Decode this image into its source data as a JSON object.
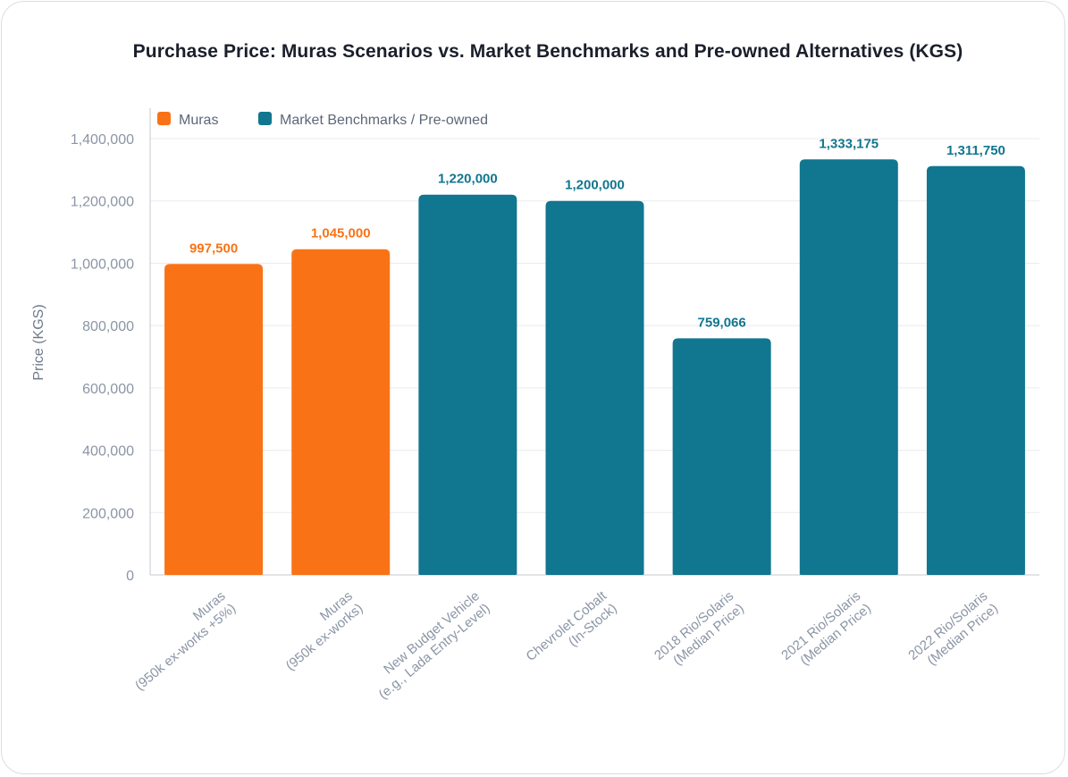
{
  "chart_data": {
    "type": "bar",
    "title": "Purchase Price: Muras Scenarios vs. Market Benchmarks and Pre-owned Alternatives (KGS)",
    "xlabel": "",
    "ylabel": "Price (KGS)",
    "ylim": [
      0,
      1400000
    ],
    "yticks": [
      0,
      200000,
      400000,
      600000,
      800000,
      1000000,
      1200000,
      1400000
    ],
    "ytick_labels": [
      "0",
      "200,000",
      "400,000",
      "600,000",
      "800,000",
      "1,000,000",
      "1,200,000",
      "1,400,000"
    ],
    "grid": true,
    "legend_position": "top-left",
    "legend": [
      {
        "name": "Muras",
        "color": "#f97316"
      },
      {
        "name": "Market Benchmarks / Pre-owned",
        "color": "#11768f"
      }
    ],
    "categories": [
      [
        "Muras",
        "(950k ex-works +5%)"
      ],
      [
        "Muras",
        "(950k ex-works)"
      ],
      [
        "New Budget Vehicle",
        "(e.g., Lada Entry-Level)"
      ],
      [
        "Chevrolet Cobalt",
        "(In-Stock)"
      ],
      [
        "2018 Rio/Solaris",
        "(Median Price)"
      ],
      [
        "2021 Rio/Solaris",
        "(Median Price)"
      ],
      [
        "2022 Rio/Solaris",
        "(Median Price)"
      ]
    ],
    "values": [
      997500,
      1045000,
      1220000,
      1200000,
      759066,
      1333175,
      1311750
    ],
    "value_labels": [
      "997,500",
      "1,045,000",
      "1,220,000",
      "1,200,000",
      "759,066",
      "1,333,175",
      "1,311,750"
    ],
    "series_index": [
      0,
      0,
      1,
      1,
      1,
      1,
      1
    ]
  }
}
